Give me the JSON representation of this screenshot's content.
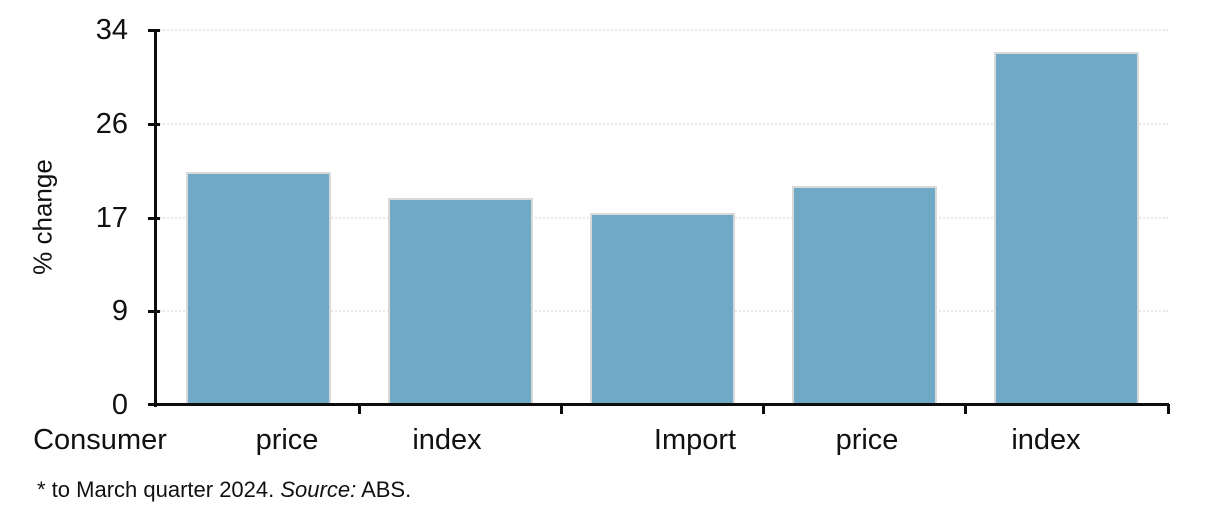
{
  "chart_data": {
    "type": "bar",
    "title": "",
    "ylabel": "% change",
    "x_axis_labels": [
      "Consumer",
      "price",
      "index",
      "Import",
      "price",
      "index"
    ],
    "implied_categories": [
      "Consumer price index",
      "Import price index"
    ],
    "values": [
      21.1,
      18.8,
      17.4,
      19.9,
      32.0
    ],
    "ylim": [
      0,
      34
    ],
    "ytick_labels": [
      "0",
      "9",
      "17",
      "26",
      "34"
    ],
    "grid": "horizontal dotted",
    "legend": "none",
    "bar_color": "#6FA9C6",
    "bar_border_color": "#D9D9D9",
    "axis_color": "#0D0D0D",
    "grid_color": "#E9E9E9"
  },
  "footnote": {
    "prefix": "* to March quarter 2024. ",
    "source_label": "Source:",
    "suffix": " ABS."
  }
}
